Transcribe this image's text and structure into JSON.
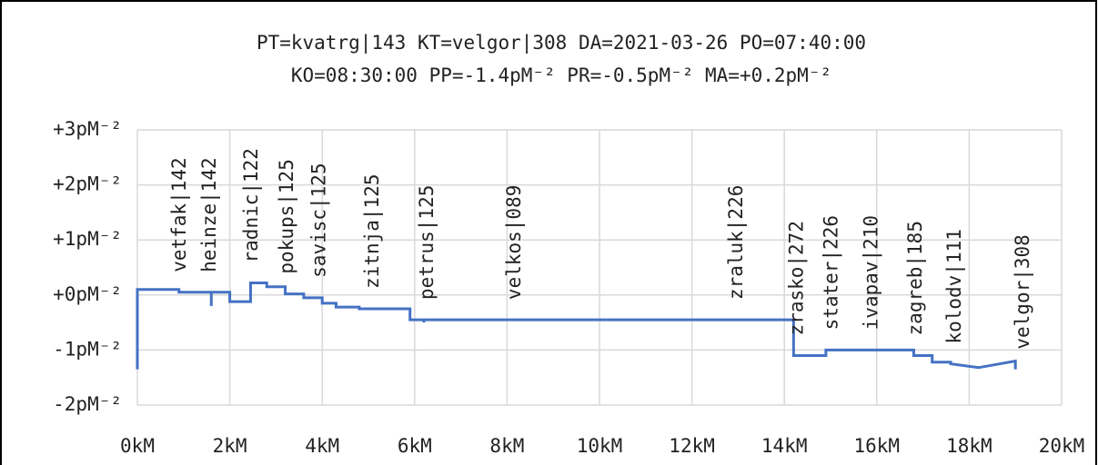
{
  "chart_data": {
    "type": "line",
    "title": "PT=kvatrg|143 KT=velgor|308 DA=2021-03-26 PO=07:40:00",
    "subtitle": "KO=08:30:00 PP=-1.4pM⁻² PR=-0.5pM⁻² MA=+0.2pM⁻²",
    "xlim": [
      0,
      20
    ],
    "xticks": [
      {
        "value": 0,
        "label": "0kM"
      },
      {
        "value": 2,
        "label": "2kM"
      },
      {
        "value": 4,
        "label": "4kM"
      },
      {
        "value": 6,
        "label": "6kM"
      },
      {
        "value": 8,
        "label": "8kM"
      },
      {
        "value": 10,
        "label": "10kM"
      },
      {
        "value": 12,
        "label": "12kM"
      },
      {
        "value": 14,
        "label": "14kM"
      },
      {
        "value": 16,
        "label": "16kM"
      },
      {
        "value": 18,
        "label": "18kM"
      },
      {
        "value": 20,
        "label": "20kM"
      }
    ],
    "ylim": [
      -2,
      3
    ],
    "yticks": [
      {
        "value": -2,
        "label": "-2pM⁻²"
      },
      {
        "value": -1,
        "label": "-1pM⁻²"
      },
      {
        "value": 0,
        "label": "+0pM⁻²"
      },
      {
        "value": 1,
        "label": "+1pM⁻²"
      },
      {
        "value": 2,
        "label": "+2pM⁻²"
      },
      {
        "value": 3,
        "label": "+3pM⁻²"
      }
    ],
    "grid": true,
    "series": [
      {
        "color": "#4472c4",
        "x": [
          0,
          0,
          0.9,
          0.9,
          1.6,
          1.6,
          1.6,
          2.0,
          2.0,
          2.45,
          2.45,
          2.8,
          2.8,
          3.2,
          3.2,
          3.6,
          3.6,
          4.0,
          4.0,
          4.3,
          4.3,
          4.8,
          4.8,
          5.9,
          5.9,
          6.2,
          6.2,
          6.2,
          14.2,
          14.2,
          14.9,
          14.9,
          16.8,
          16.8,
          17.2,
          17.2,
          17.6,
          17.6,
          18.2,
          19.0,
          19.0
        ],
        "values": [
          -1.35,
          0.1,
          0.1,
          0.05,
          0.05,
          -0.2,
          0.05,
          0.05,
          -0.12,
          -0.12,
          0.22,
          0.22,
          0.15,
          0.15,
          0.02,
          0.02,
          -0.05,
          -0.05,
          -0.15,
          -0.15,
          -0.22,
          -0.22,
          -0.25,
          -0.25,
          -0.45,
          -0.45,
          -0.5,
          -0.45,
          -0.45,
          -1.1,
          -1.1,
          -1.0,
          -1.0,
          -1.1,
          -1.1,
          -1.22,
          -1.22,
          -1.25,
          -1.32,
          -1.2,
          -1.35
        ]
      }
    ],
    "annotations": [
      {
        "text": "vetfak|142",
        "x": 0.93
      },
      {
        "text": "heinze|142",
        "x": 1.57
      },
      {
        "text": "radnic|122",
        "x": 2.48
      },
      {
        "text": "pokups|125",
        "x": 3.25
      },
      {
        "text": "savisc|125",
        "x": 3.95
      },
      {
        "text": "zitnja|125",
        "x": 5.1
      },
      {
        "text": "petrus|125",
        "x": 6.28
      },
      {
        "text": "velkos|089",
        "x": 8.17
      },
      {
        "text": "zraluk|226",
        "x": 12.97
      },
      {
        "text": "zrasko|272",
        "x": 14.28
      },
      {
        "text": "stater|226",
        "x": 15.03
      },
      {
        "text": "ivapav|210",
        "x": 15.9
      },
      {
        "text": "zagreb|185",
        "x": 16.85
      },
      {
        "text": "kolodv|111",
        "x": 17.7
      },
      {
        "text": "velgor|308",
        "x": 19.17
      }
    ]
  }
}
